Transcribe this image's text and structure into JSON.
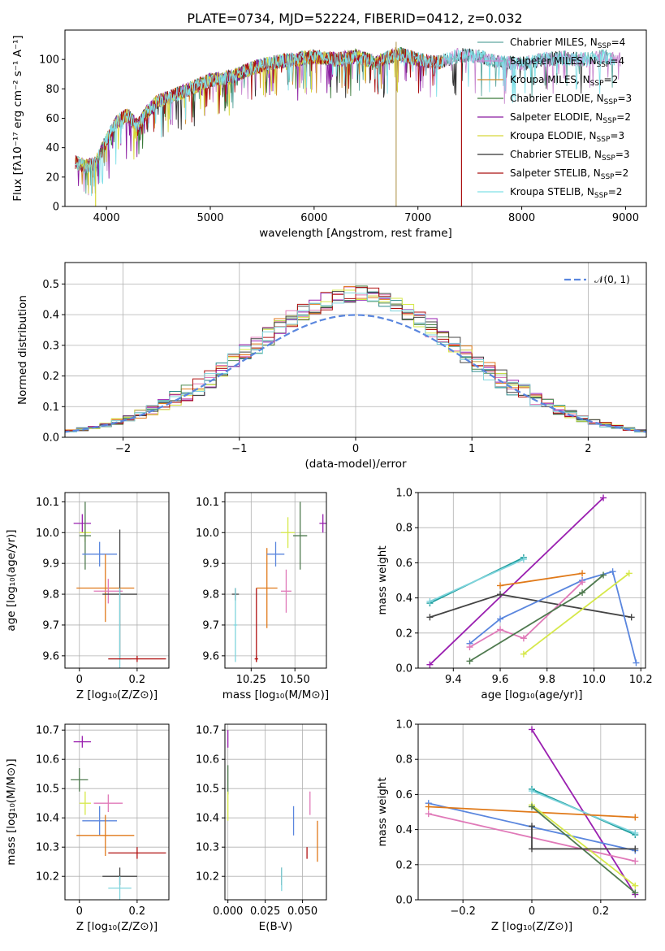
{
  "figure": {
    "title": "PLATE=0734, MJD=52224, FIBERID=0412, z=0.032"
  },
  "colors": {
    "Chabrier MILES": "#5fa8a0",
    "Salpeter MILES": "#c98ad0",
    "Kroupa MILES": "#d08a2a",
    "Chabrier ELODIE": "#3a7a3a",
    "Salpeter ELODIE": "#8a1aa0",
    "Kroupa ELODIE": "#d8d83a",
    "Chabrier STELIB": "#303030",
    "Salpeter STELIB": "#aa1010",
    "Kroupa STELIB": "#80e0e8",
    "ssp1": "#1f9e9e",
    "ssp2": "#e079b8",
    "ssp3": "#e07a1a",
    "ssp4": "#4f7a4f",
    "ssp5": "#9a1fb0",
    "ssp6": "#d6e84a",
    "ssp7": "#444444",
    "ssp8": "#b01010",
    "ssp9": "#5a86de",
    "ssp10": "#7fd4dc",
    "normal": "#5a86de"
  },
  "chart_data": [
    {
      "type": "line",
      "title": "PLATE=0734, MJD=52224, FIBERID=0412, z=0.032",
      "xlabel": "wavelength [Angstrom, rest frame]",
      "ylabel": "Flux [fλ10⁻¹⁷ erg cm⁻² s⁻¹ A⁻¹]",
      "xlim": [
        3600,
        9200
      ],
      "ylim": [
        0,
        120
      ],
      "xticks": [
        4000,
        5000,
        6000,
        7000,
        8000,
        9000
      ],
      "yticks": [
        0,
        20,
        40,
        60,
        80,
        100
      ],
      "grid": false,
      "legend_position": "right",
      "series": [
        {
          "name": "Chabrier MILES, N",
          "sub": "SSP",
          "tail": "=4"
        },
        {
          "name": "Salpeter MILES, N",
          "sub": "SSP",
          "tail": "=4"
        },
        {
          "name": "Kroupa MILES, N",
          "sub": "SSP",
          "tail": "=2"
        },
        {
          "name": "Chabrier ELODIE, N",
          "sub": "SSP",
          "tail": "=3"
        },
        {
          "name": "Salpeter ELODIE, N",
          "sub": "SSP",
          "tail": "=2"
        },
        {
          "name": "Kroupa ELODIE, N",
          "sub": "SSP",
          "tail": "=3"
        },
        {
          "name": "Chabrier STELIB, N",
          "sub": "SSP",
          "tail": "=3"
        },
        {
          "name": "Salpeter STELIB, N",
          "sub": "SSP",
          "tail": "=2"
        },
        {
          "name": "Kroupa STELIB, N",
          "sub": "SSP",
          "tail": "=2"
        }
      ],
      "continuum": {
        "x": [
          3700,
          3800,
          3900,
          4000,
          4100,
          4200,
          4300,
          4400,
          4500,
          4600,
          4800,
          5000,
          5200,
          5400,
          5600,
          5800,
          6000,
          6200,
          6400,
          6600,
          6800,
          7000,
          7200,
          7400,
          7600,
          7800,
          8000,
          8200,
          8400,
          8600,
          8800,
          8900
        ],
        "y": [
          30,
          27,
          30,
          45,
          58,
          62,
          55,
          65,
          72,
          74,
          80,
          86,
          88,
          94,
          98,
          100,
          102,
          100,
          102,
          98,
          104,
          100,
          98,
          103,
          102,
          98,
          97,
          100,
          101,
          100,
          102,
          100
        ]
      },
      "spikes": [
        {
          "x": 3895,
          "y_low": 0,
          "y_high": 30
        },
        {
          "x": 6790,
          "y_low": 0,
          "y_high": 112
        },
        {
          "x": 7420,
          "y_low": 0,
          "y_high": 105
        }
      ]
    },
    {
      "type": "histogram",
      "xlabel": "(data-model)/error",
      "ylabel": "Normed distribution",
      "xlim": [
        -2.5,
        2.5
      ],
      "ylim": [
        0,
        0.57
      ],
      "xticks": [
        -2,
        -1,
        0,
        1,
        2
      ],
      "yticks": [
        0.0,
        0.1,
        0.2,
        0.3,
        0.4,
        0.5
      ],
      "grid": true,
      "legend_position": "top-right",
      "legend": "𝒩(0, 1)",
      "reference": {
        "name": "𝒩(0, 1)",
        "mean": 0,
        "sigma": 1
      },
      "bin_width": 0.1,
      "n_histograms": 9
    },
    {
      "type": "errorbar",
      "xlabel": "Z [log₁₀(Z/Z⊙)]",
      "ylabel": "age  [log₁₀(age/yr)]",
      "xlim": [
        -0.05,
        0.31
      ],
      "ylim": [
        9.56,
        10.13
      ],
      "xticks": [
        0.0,
        0.2
      ],
      "yticks": [
        9.6,
        9.7,
        9.8,
        9.9,
        10.0,
        10.1
      ],
      "grid": true,
      "points": [
        {
          "x": 0.01,
          "y": 10.03,
          "xerr": 0.03,
          "yerr": 0.03,
          "c": "ssp5"
        },
        {
          "x": 0.02,
          "y": 10.0,
          "xerr": 0.02,
          "yerr": 0.03,
          "c": "ssp6"
        },
        {
          "x": 0.02,
          "y": 9.99,
          "xerr": 0.02,
          "yerr": 0.11,
          "c": "ssp4"
        },
        {
          "x": 0.07,
          "y": 9.93,
          "xerr": 0.06,
          "yerr": 0.04,
          "c": "ssp9"
        },
        {
          "x": 0.09,
          "y": 9.82,
          "xerr": 0.1,
          "yerr": 0.11,
          "c": "ssp3"
        },
        {
          "x": 0.1,
          "y": 9.81,
          "xerr": 0.05,
          "yerr": 0.04,
          "c": "ssp2"
        },
        {
          "x": 0.14,
          "y": 9.8,
          "xerr": 0.06,
          "yerr": 0.21,
          "c": "ssp7"
        },
        {
          "x": 0.14,
          "y": 9.59,
          "xerr": 0.04,
          "yerr": 0.23,
          "c": "ssp10"
        },
        {
          "x": 0.2,
          "y": 9.59,
          "xerr": 0.1,
          "yerr": 0.01,
          "c": "ssp8"
        }
      ]
    },
    {
      "type": "errorbar",
      "xlabel": "mass [log₁₀(M/M⊙)]",
      "ylabel": "",
      "xlim": [
        10.1,
        10.68
      ],
      "ylim": [
        9.56,
        10.13
      ],
      "xticks": [
        10.25,
        10.5
      ],
      "yticks": [
        9.6,
        9.7,
        9.8,
        9.9,
        10.0,
        10.1
      ],
      "grid": true,
      "points": [
        {
          "x": 10.16,
          "y": 9.8,
          "xerr": 0.02,
          "yerr": 0.02,
          "c": "ssp7"
        },
        {
          "x": 10.16,
          "y": 9.7,
          "xerr": 0.01,
          "yerr": 0.12,
          "c": "ssp10"
        },
        {
          "x": 10.28,
          "y": 9.59,
          "xerr": 0.01,
          "yerr": 0.01,
          "c": "ssp8"
        },
        {
          "x": 10.28,
          "y": 9.7,
          "xerr": 0.0,
          "yerr": 0.12,
          "c": "ssp8"
        },
        {
          "x": 10.34,
          "y": 9.82,
          "xerr": 0.06,
          "yerr": 0.13,
          "c": "ssp3"
        },
        {
          "x": 10.39,
          "y": 9.93,
          "xerr": 0.05,
          "yerr": 0.04,
          "c": "ssp9"
        },
        {
          "x": 10.45,
          "y": 9.81,
          "xerr": 0.03,
          "yerr": 0.07,
          "c": "ssp2"
        },
        {
          "x": 10.46,
          "y": 10.0,
          "xerr": 0.04,
          "yerr": 0.05,
          "c": "ssp6"
        },
        {
          "x": 10.53,
          "y": 9.99,
          "xerr": 0.04,
          "yerr": 0.11,
          "c": "ssp4"
        },
        {
          "x": 10.66,
          "y": 10.03,
          "xerr": 0.02,
          "yerr": 0.03,
          "c": "ssp5"
        }
      ]
    },
    {
      "type": "line",
      "xlabel": "age  [log₁₀(age/yr)]",
      "ylabel": "mass weight",
      "xlim": [
        9.25,
        10.22
      ],
      "ylim": [
        0,
        1
      ],
      "xticks": [
        9.4,
        9.6,
        9.8,
        10.0,
        10.2
      ],
      "yticks": [
        0.0,
        0.2,
        0.4,
        0.6,
        0.8,
        1.0
      ],
      "grid": true,
      "series": [
        {
          "c": "ssp5",
          "x": [
            9.3,
            10.04
          ],
          "y": [
            0.02,
            0.97
          ]
        },
        {
          "c": "ssp1",
          "x": [
            9.3,
            9.7
          ],
          "y": [
            0.37,
            0.63
          ]
        },
        {
          "c": "ssp10",
          "x": [
            9.3,
            9.7
          ],
          "y": [
            0.38,
            0.62
          ]
        },
        {
          "c": "ssp3",
          "x": [
            9.6,
            9.95
          ],
          "y": [
            0.47,
            0.54
          ]
        },
        {
          "c": "ssp7",
          "x": [
            9.3,
            9.6,
            10.16
          ],
          "y": [
            0.29,
            0.42,
            0.29
          ]
        },
        {
          "c": "ssp9",
          "x": [
            9.47,
            9.6,
            9.95,
            10.08,
            10.18
          ],
          "y": [
            0.14,
            0.28,
            0.5,
            0.55,
            0.03
          ]
        },
        {
          "c": "ssp2",
          "x": [
            9.47,
            9.6,
            9.7,
            9.95
          ],
          "y": [
            0.12,
            0.22,
            0.17,
            0.49
          ]
        },
        {
          "c": "ssp4",
          "x": [
            9.47,
            9.95,
            10.04
          ],
          "y": [
            0.04,
            0.43,
            0.53
          ]
        },
        {
          "c": "ssp6",
          "x": [
            9.7,
            10.15
          ],
          "y": [
            0.08,
            0.54
          ]
        }
      ]
    },
    {
      "type": "errorbar",
      "xlabel": "Z [log₁₀(Z/Z⊙)]",
      "ylabel": "mass [log₁₀(M/M⊙)]",
      "xlim": [
        -0.05,
        0.31
      ],
      "ylim": [
        10.12,
        10.72
      ],
      "xticks": [
        0.0,
        0.2
      ],
      "yticks": [
        10.2,
        10.3,
        10.4,
        10.5,
        10.6,
        10.7
      ],
      "grid": true,
      "points": [
        {
          "x": 0.01,
          "y": 10.66,
          "xerr": 0.03,
          "yerr": 0.02,
          "c": "ssp5"
        },
        {
          "x": 0.0,
          "y": 10.53,
          "xerr": 0.03,
          "yerr": 0.04,
          "c": "ssp4"
        },
        {
          "x": 0.02,
          "y": 10.45,
          "xerr": 0.02,
          "yerr": 0.04,
          "c": "ssp6"
        },
        {
          "x": 0.1,
          "y": 10.45,
          "xerr": 0.05,
          "yerr": 0.03,
          "c": "ssp2"
        },
        {
          "x": 0.07,
          "y": 10.39,
          "xerr": 0.06,
          "yerr": 0.05,
          "c": "ssp9"
        },
        {
          "x": 0.09,
          "y": 10.34,
          "xerr": 0.1,
          "yerr": 0.07,
          "c": "ssp3"
        },
        {
          "x": 0.2,
          "y": 10.28,
          "xerr": 0.1,
          "yerr": 0.02,
          "c": "ssp8"
        },
        {
          "x": 0.14,
          "y": 10.2,
          "xerr": 0.06,
          "yerr": 0.03,
          "c": "ssp7"
        },
        {
          "x": 0.14,
          "y": 10.16,
          "xerr": 0.04,
          "yerr": 0.04,
          "c": "ssp10"
        }
      ]
    },
    {
      "type": "errorbar",
      "xlabel": "E(B-V)",
      "ylabel": "",
      "xlim": [
        -0.002,
        0.066
      ],
      "ylim": [
        10.12,
        10.72
      ],
      "xticks": [
        0.0,
        0.025,
        0.05
      ],
      "yticks": [
        10.2,
        10.3,
        10.4,
        10.5,
        10.6,
        10.7
      ],
      "grid": true,
      "points": [
        {
          "x": 0.0,
          "y": 10.67,
          "xerr": 0,
          "yerr": 0.03,
          "c": "ssp5"
        },
        {
          "x": 0.0,
          "y": 10.53,
          "xerr": 0,
          "yerr": 0.05,
          "c": "ssp4"
        },
        {
          "x": 0.0,
          "y": 10.44,
          "xerr": 0,
          "yerr": 0.05,
          "c": "ssp6"
        },
        {
          "x": 0.055,
          "y": 10.45,
          "xerr": 0,
          "yerr": 0.04,
          "c": "ssp2"
        },
        {
          "x": 0.044,
          "y": 10.39,
          "xerr": 0,
          "yerr": 0.05,
          "c": "ssp9"
        },
        {
          "x": 0.06,
          "y": 10.32,
          "xerr": 0,
          "yerr": 0.07,
          "c": "ssp3"
        },
        {
          "x": 0.053,
          "y": 10.28,
          "xerr": 0,
          "yerr": 0.02,
          "c": "ssp8"
        },
        {
          "x": 0.036,
          "y": 10.2,
          "xerr": 0,
          "yerr": 0.03,
          "c": "ssp7"
        },
        {
          "x": 0.036,
          "y": 10.19,
          "xerr": 0,
          "yerr": 0.04,
          "c": "ssp10"
        }
      ]
    },
    {
      "type": "line",
      "xlabel": "Z [log₁₀(Z/Z⊙)]",
      "ylabel": "mass weight",
      "xlim": [
        -0.33,
        0.33
      ],
      "ylim": [
        0,
        1
      ],
      "xticks": [
        -0.2,
        0.0,
        0.2
      ],
      "yticks": [
        0.0,
        0.2,
        0.4,
        0.6,
        0.8,
        1.0
      ],
      "grid": true,
      "series": [
        {
          "c": "ssp5",
          "x": [
            0.0,
            0.3
          ],
          "y": [
            0.97,
            0.03
          ]
        },
        {
          "c": "ssp1",
          "x": [
            0.0,
            0.3
          ],
          "y": [
            0.63,
            0.37
          ]
        },
        {
          "c": "ssp10",
          "x": [
            0.0,
            0.3
          ],
          "y": [
            0.62,
            0.38
          ]
        },
        {
          "c": "ssp9",
          "x": [
            -0.3,
            0.3
          ],
          "y": [
            0.55,
            0.28
          ]
        },
        {
          "c": "ssp3",
          "x": [
            -0.3,
            0.3
          ],
          "y": [
            0.53,
            0.47
          ]
        },
        {
          "c": "ssp2",
          "x": [
            -0.3,
            0.3
          ],
          "y": [
            0.49,
            0.22
          ]
        },
        {
          "c": "ssp6",
          "x": [
            0.0,
            0.3
          ],
          "y": [
            0.54,
            0.08
          ]
        },
        {
          "c": "ssp4",
          "x": [
            0.0,
            0.3
          ],
          "y": [
            0.53,
            0.04
          ]
        },
        {
          "c": "ssp7",
          "x": [
            0.0,
            0.0,
            0.3
          ],
          "y": [
            0.42,
            0.29,
            0.29
          ]
        }
      ]
    }
  ]
}
